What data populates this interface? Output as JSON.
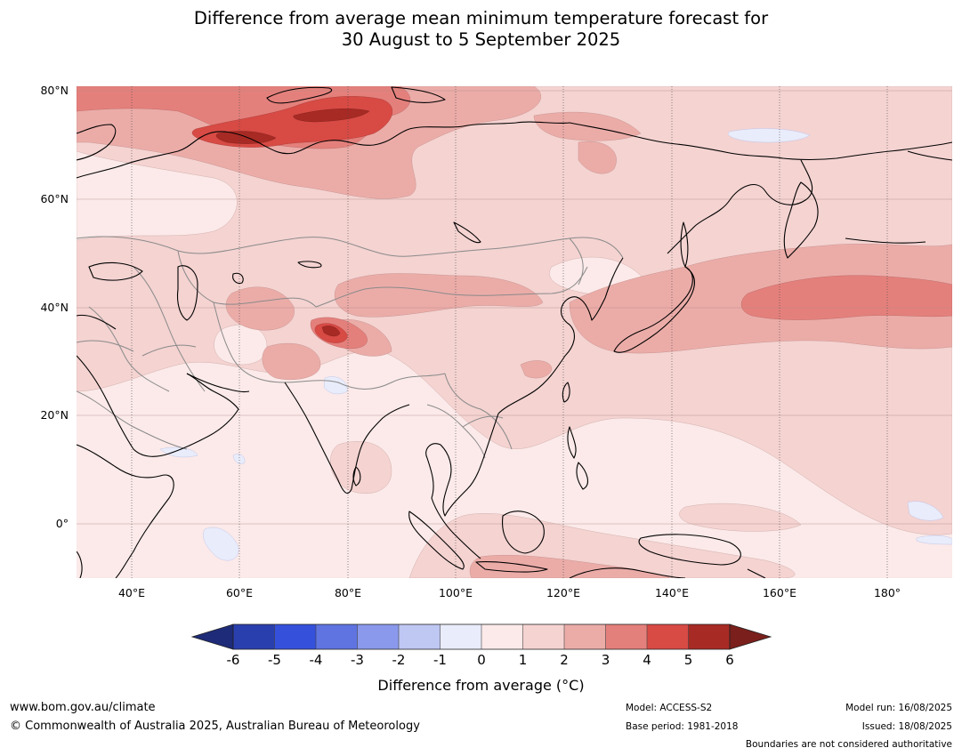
{
  "title": {
    "line1": "Difference from average mean minimum temperature forecast for",
    "line2": "30 August to 5 September 2025"
  },
  "map": {
    "latitude_labels": [
      "80°N",
      "60°N",
      "40°N",
      "20°N",
      "0°"
    ],
    "longitude_labels": [
      "40°E",
      "60°E",
      "80°E",
      "100°E",
      "120°E",
      "140°E",
      "160°E",
      "180°"
    ],
    "ocean_color": "#fbeae9",
    "coastline_color": "#000000",
    "border_color": "#888888"
  },
  "colorbar": {
    "ticks": [
      "-6",
      "-5",
      "-4",
      "-3",
      "-2",
      "-1",
      "0",
      "1",
      "2",
      "3",
      "4",
      "5",
      "6"
    ],
    "under_color": "#1e2b78",
    "over_color": "#7a1f1b",
    "colors": [
      "#2a3fae",
      "#3551dc",
      "#5f74e1",
      "#8a99eb",
      "#bfc7f3",
      "#e9ecfa",
      "#fbeae9",
      "#f4d3d1",
      "#ebaca8",
      "#e4807c",
      "#d84a44",
      "#a82a24"
    ],
    "label": "Difference from average (°C)"
  },
  "footer": {
    "website": "www.bom.gov.au/climate",
    "copyright": "© Commonwealth of Australia 2025, Australian Bureau of Meteorology",
    "model": "Model: ACCESS-S2",
    "base_period": "Base period: 1981-2018",
    "model_run": "Model run: 16/08/2025",
    "issued": "Issued: 18/08/2025",
    "disclaimer": "Boundaries are not considered authoritative"
  }
}
